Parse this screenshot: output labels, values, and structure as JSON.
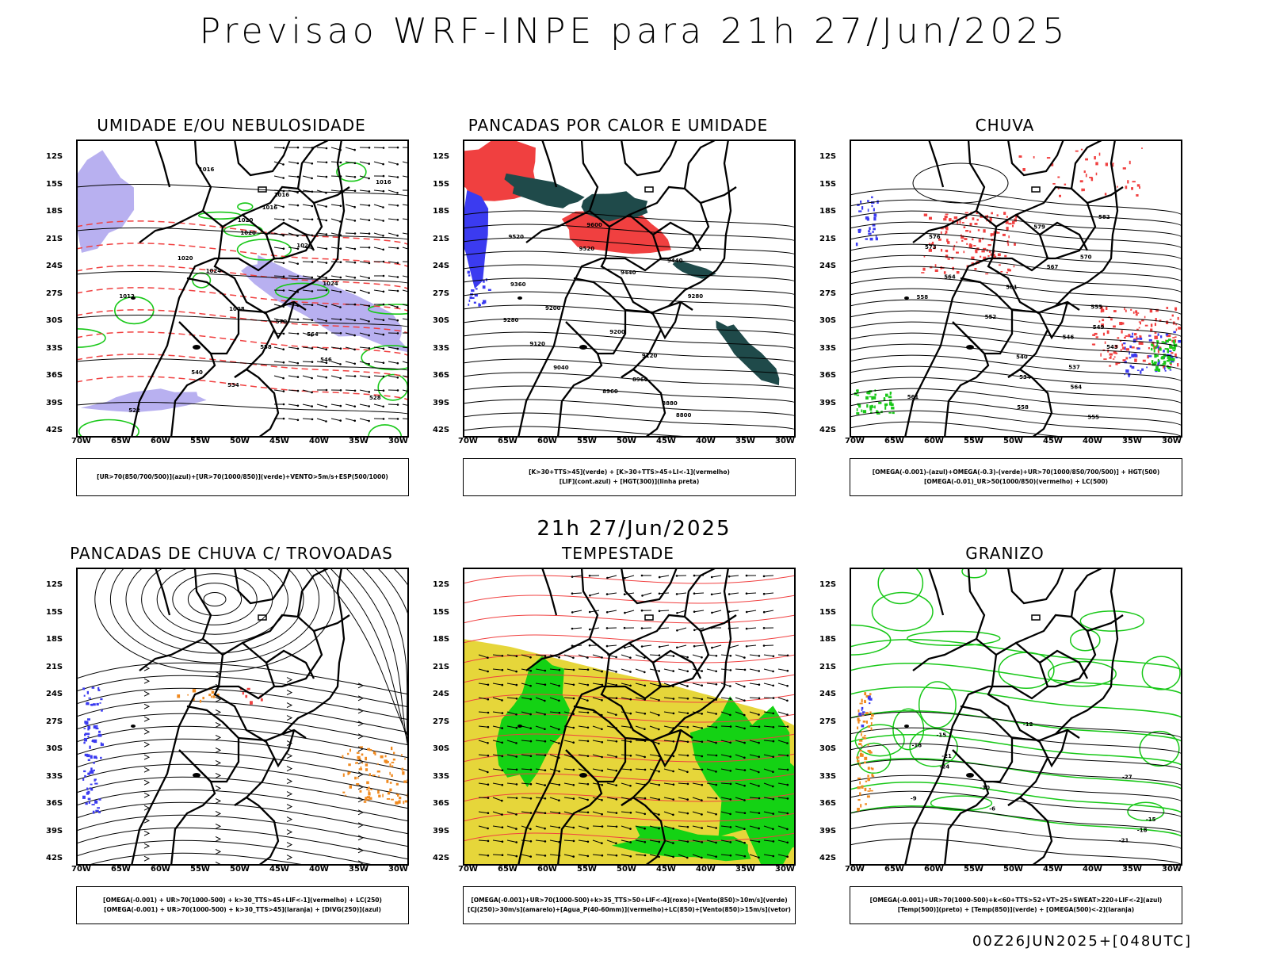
{
  "title": "Previsao WRF-INPE  para 21h 27/Jun/2025",
  "mid_title": "21h 27/Jun/2025",
  "footer": "00Z26JUN2025+[048UTC]",
  "lat_ticks": [
    "12S",
    "15S",
    "18S",
    "21S",
    "24S",
    "27S",
    "30S",
    "33S",
    "36S",
    "39S",
    "42S"
  ],
  "lon_ticks": [
    "70W",
    "65W",
    "60W",
    "55W",
    "50W",
    "45W",
    "40W",
    "35W",
    "30W"
  ],
  "colors": {
    "blue": "#3b3bf0",
    "green": "#18c818",
    "red": "#f04040",
    "darkteal": "#1f4a4a",
    "orange": "#f08a20",
    "yellow": "#e6d63a",
    "lavender": "#b8b0f0",
    "brightgreen": "#14d214"
  },
  "panels": [
    {
      "title": "UMIDADE E/OU NEBULOSIDADE",
      "legend": [
        "[UR>70(850/700/500)](azul)+[UR>70(1000/850)](verde)+VENTO>5m/s+ESP(500/1000)"
      ],
      "contour_labels": [
        "1016",
        "1016",
        "1016",
        "1016",
        "1020",
        "1020",
        "1020",
        "1020",
        "1024",
        "1024",
        "1012",
        "1008",
        "570",
        "564",
        "558",
        "546",
        "540",
        "534",
        "528",
        "522"
      ]
    },
    {
      "title": "PANCADAS POR CALOR E UMIDADE",
      "legend": [
        "[K>30+TTS>45](verde) + [K>30+TTS>45+LI<-1](vermelho)",
        "[LIF](cont.azul) + [HGT(300)](linha preta)"
      ],
      "contour_labels": [
        "9600",
        "9520",
        "9520",
        "9440",
        "9440",
        "9360",
        "9280",
        "9200",
        "9280",
        "9200",
        "9120",
        "9120",
        "9040",
        "8960",
        "8960",
        "8880",
        "8800"
      ]
    },
    {
      "title": "CHUVA",
      "legend": [
        "[OMEGA(-0.001)-(azul)+OMEGA(-0.3)-(verde)+UR>70(1000/850/700/500)] + HGT(500)",
        "[OMEGA(-0.01)_UR>50(1000/850)(vermelho) + LC(500)"
      ],
      "contour_labels": [
        "582",
        "579",
        "576",
        "573",
        "570",
        "567",
        "564",
        "561",
        "558",
        "555",
        "552",
        "549",
        "546",
        "543",
        "540",
        "537",
        "534",
        "564",
        "561",
        "558",
        "555"
      ]
    },
    {
      "title": "PANCADAS DE CHUVA C/ TROVOADAS",
      "legend": [
        "[OMEGA(-0.001) + UR>70(1000-500) + k>30_TTS>45+LIF<-1](vermelho) + LC(250)",
        "[OMEGA(-0.001) + UR>70(1000-500) + k>30_TTS>45](laranja) + [DIVG(250)](azul)"
      ],
      "contour_labels": []
    },
    {
      "title": "TEMPESTADE",
      "legend": [
        "[OMEGA(-0.001)+UR>70(1000-500)+k>35_TTS>50+LIF<-4](roxo)+[Vento(850)>10m/s](verde)",
        "[CJ(250)>30m/s](amarelo)+[Agua_P(40-60mm)](vermelho)+LC(850)+[Vento(850)>15m/s](vetor)"
      ],
      "contour_labels": []
    },
    {
      "title": "GRANIZO",
      "legend": [
        "[OMEGA(-0.001)+UR>70(1000-500)+k<60+TTS>52+VT>25+SWEAT>220+LIF<-2](azul)",
        "[Temp(500)](preto) + [Temp(850)](verde) + [OMEGA(500)<-2](laranja)"
      ],
      "contour_labels": [
        "-12",
        "-15",
        "-18",
        "-21",
        "-24",
        "-27",
        "-30",
        "-9",
        "-6",
        "-15",
        "-18",
        "-21"
      ]
    }
  ]
}
